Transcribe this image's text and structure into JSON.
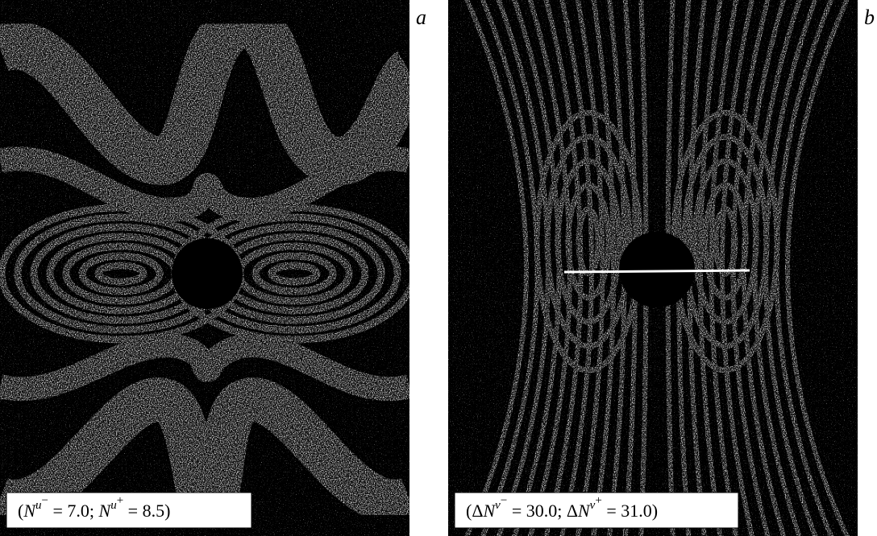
{
  "panels": [
    {
      "label": "a",
      "caption": [
        "(",
        "N",
        "u",
        "−",
        " = 7.0;  ",
        "N",
        "u",
        "+",
        " = 8.5)"
      ]
    },
    {
      "label": "b",
      "caption": [
        "(Δ",
        "N",
        "v",
        "−",
        " = 30.0;  Δ",
        "N",
        "v",
        "+",
        " = 31.0)"
      ]
    }
  ]
}
